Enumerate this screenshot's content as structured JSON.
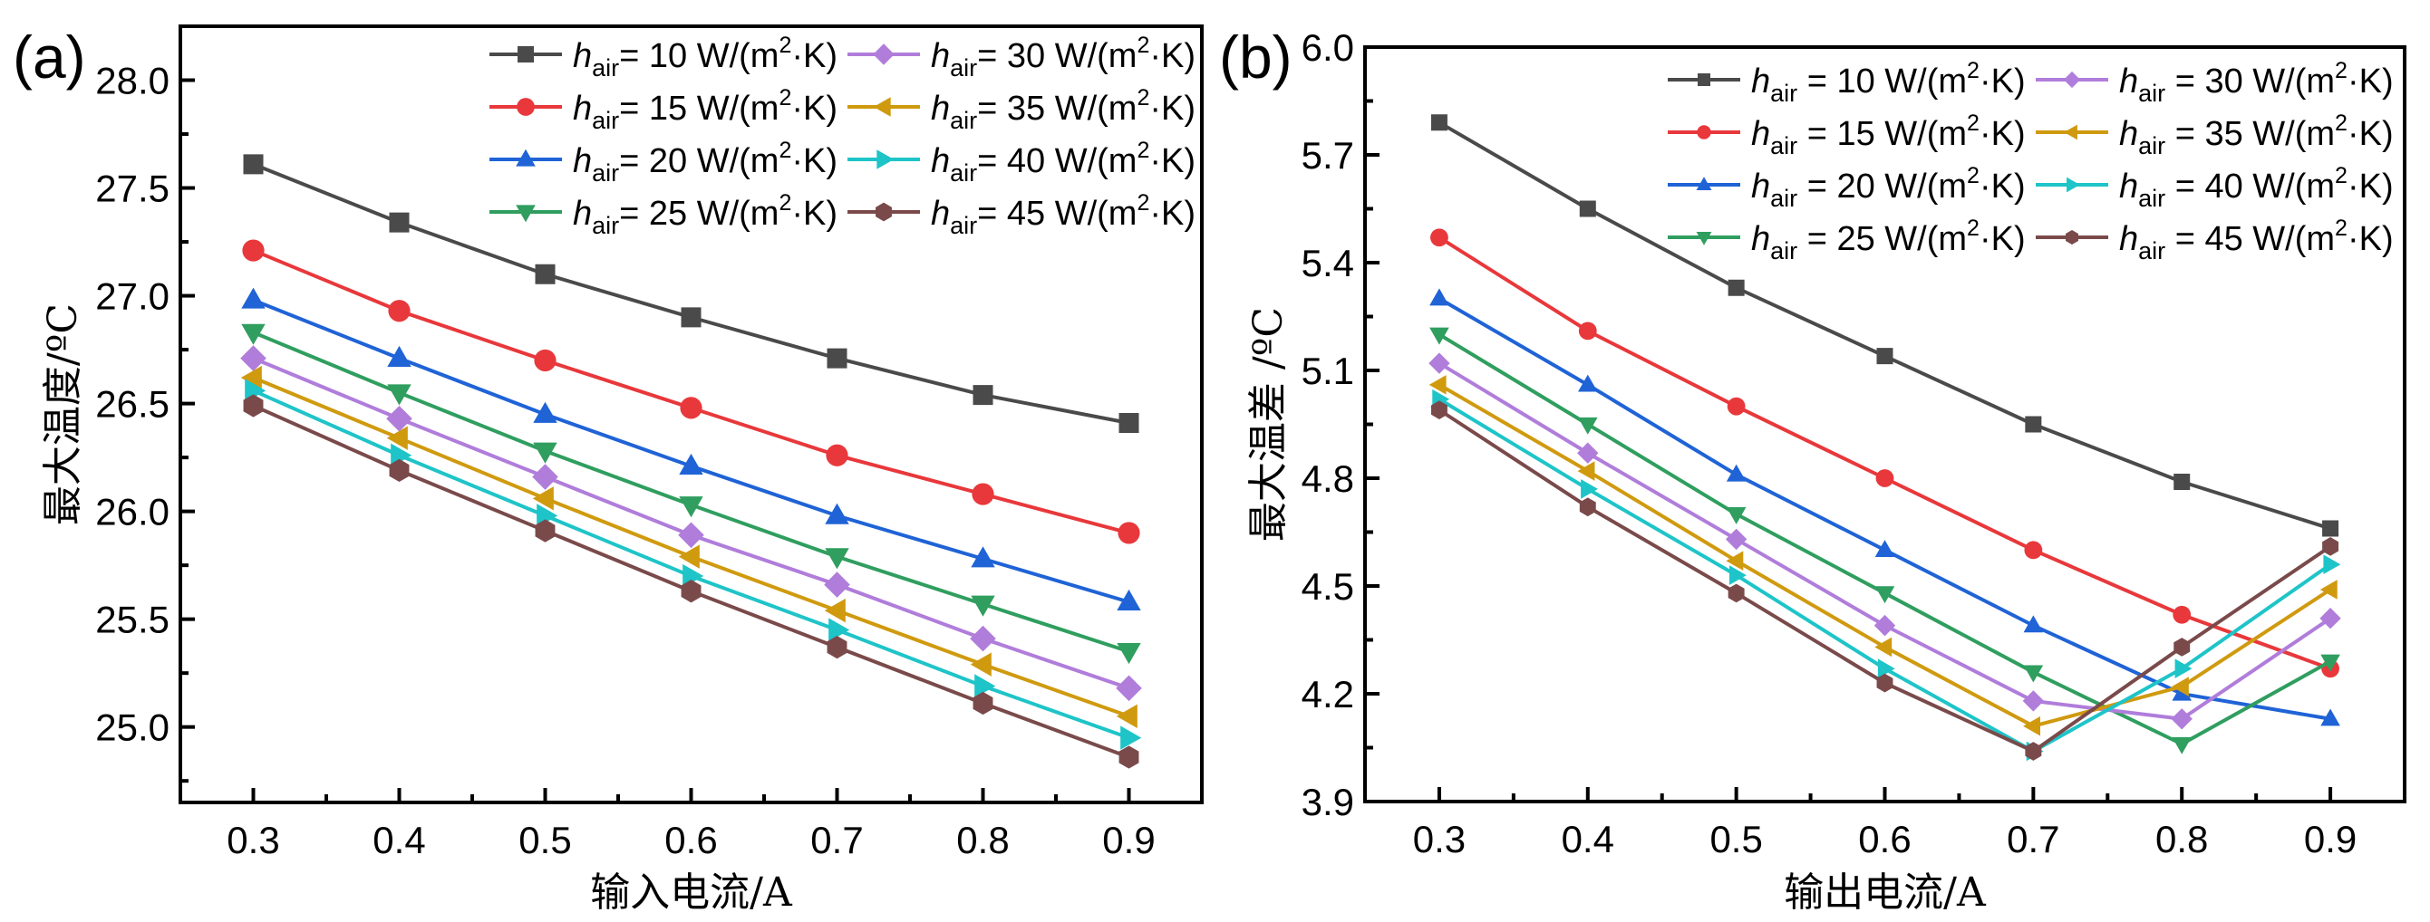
{
  "chart_data": [
    {
      "type": "line",
      "panel_label": "(a)",
      "title": "",
      "xlabel": "输入电流/A",
      "ylabel": "最大温度/ºC",
      "x": [
        0.3,
        0.4,
        0.5,
        0.6,
        0.7,
        0.8,
        0.9
      ],
      "xlim": [
        0.25,
        0.95
      ],
      "ylim": [
        24.65,
        28.25
      ],
      "xticks": [
        "0.3",
        "0.4",
        "0.5",
        "0.6",
        "0.7",
        "0.8",
        "0.9"
      ],
      "yticks": [
        "25.0",
        "25.5",
        "26.0",
        "26.5",
        "27.0",
        "27.5",
        "28.0"
      ],
      "grid": false,
      "legend_position": "top-right",
      "legend_columns": 2,
      "series": [
        {
          "name": "h_air= 10 W/(m2·K)",
          "h": "10",
          "color": "#4a4a4a",
          "marker": "square",
          "values": [
            27.61,
            27.34,
            27.1,
            26.9,
            26.71,
            26.54,
            26.41
          ]
        },
        {
          "name": "h_air= 15 W/(m2·K)",
          "h": "15",
          "color": "#e8383b",
          "marker": "circle",
          "values": [
            27.21,
            26.93,
            26.7,
            26.48,
            26.26,
            26.08,
            25.9
          ]
        },
        {
          "name": "h_air= 20 W/(m2·K)",
          "h": "20",
          "color": "#1f63d6",
          "marker": "triangle-up",
          "values": [
            26.98,
            26.71,
            26.45,
            26.21,
            25.98,
            25.78,
            25.58
          ]
        },
        {
          "name": "h_air= 25 W/(m2·K)",
          "h": "25",
          "color": "#2f9e5f",
          "marker": "triangle-down",
          "values": [
            26.83,
            26.55,
            26.28,
            26.03,
            25.79,
            25.57,
            25.35
          ]
        },
        {
          "name": "h_air= 30 W/(m2·K)",
          "h": "30",
          "color": "#b07ddb",
          "marker": "diamond",
          "values": [
            26.71,
            26.43,
            26.16,
            25.89,
            25.66,
            25.41,
            25.18
          ]
        },
        {
          "name": "h_air= 35 W/(m2·K)",
          "h": "35",
          "color": "#d09a0f",
          "marker": "triangle-left",
          "values": [
            26.62,
            26.34,
            26.06,
            25.79,
            25.54,
            25.29,
            25.05
          ]
        },
        {
          "name": "h_air= 40 W/(m2·K)",
          "h": "40",
          "color": "#1ec4c8",
          "marker": "triangle-right",
          "values": [
            26.56,
            26.26,
            25.98,
            25.7,
            25.45,
            25.19,
            24.95
          ]
        },
        {
          "name": "h_air= 45 W/(m2·K)",
          "h": "45",
          "color": "#7a4a4a",
          "marker": "hexagon",
          "values": [
            26.49,
            26.19,
            25.91,
            25.63,
            25.37,
            25.11,
            24.86
          ]
        }
      ]
    },
    {
      "type": "line",
      "panel_label": "(b)",
      "title": "",
      "xlabel": "输出电流/A",
      "ylabel": "最大温差 /ºC",
      "x": [
        0.3,
        0.4,
        0.5,
        0.6,
        0.7,
        0.8,
        0.9
      ],
      "xlim": [
        0.25,
        0.95
      ],
      "ylim": [
        3.9,
        6.0
      ],
      "xticks": [
        "0.3",
        "0.4",
        "0.5",
        "0.6",
        "0.7",
        "0.8",
        "0.9"
      ],
      "yticks": [
        "3.9",
        "4.2",
        "4.5",
        "4.8",
        "5.1",
        "5.4",
        "5.7",
        "6.0"
      ],
      "grid": false,
      "legend_position": "top-right",
      "legend_columns": 2,
      "series": [
        {
          "name": "h_air = 10 W/(m2·K)",
          "h": "10",
          "color": "#4a4a4a",
          "marker": "square",
          "values": [
            5.79,
            5.55,
            5.33,
            5.14,
            4.95,
            4.79,
            4.66
          ]
        },
        {
          "name": "h_air = 15 W/(m2·K)",
          "h": "15",
          "color": "#e8383b",
          "marker": "circle",
          "values": [
            5.47,
            5.21,
            5.0,
            4.8,
            4.6,
            4.42,
            4.27
          ]
        },
        {
          "name": "h_air = 20 W/(m2·K)",
          "h": "20",
          "color": "#1f63d6",
          "marker": "triangle-up",
          "values": [
            5.3,
            5.06,
            4.81,
            4.6,
            4.39,
            4.2,
            4.13
          ]
        },
        {
          "name": "h_air = 25 W/(m2·K)",
          "h": "25",
          "color": "#2f9e5f",
          "marker": "triangle-down",
          "values": [
            5.2,
            4.95,
            4.7,
            4.48,
            4.26,
            4.06,
            4.29
          ]
        },
        {
          "name": "h_air = 30 W/(m2·K)",
          "h": "30",
          "color": "#b07ddb",
          "marker": "diamond",
          "values": [
            5.12,
            4.87,
            4.63,
            4.39,
            4.18,
            4.13,
            4.41
          ]
        },
        {
          "name": "h_air = 35 W/(m2·K)",
          "h": "35",
          "color": "#d09a0f",
          "marker": "triangle-left",
          "values": [
            5.06,
            4.82,
            4.57,
            4.33,
            4.11,
            4.22,
            4.49
          ]
        },
        {
          "name": "h_air = 40 W/(m2·K)",
          "h": "40",
          "color": "#1ec4c8",
          "marker": "triangle-right",
          "values": [
            5.02,
            4.77,
            4.53,
            4.27,
            4.04,
            4.27,
            4.56
          ]
        },
        {
          "name": "h_air = 45 W/(m2·K)",
          "h": "45",
          "color": "#7a4a4a",
          "marker": "hexagon",
          "values": [
            4.99,
            4.72,
            4.48,
            4.23,
            4.04,
            4.33,
            4.61
          ]
        }
      ]
    }
  ],
  "legend": {
    "symbol": "h",
    "subscript": "air",
    "unit_prefix": "W/(m",
    "unit_exp": "2",
    "unit_suffix": "·K)",
    "eq_a": "= ",
    "eq_b": " = "
  }
}
